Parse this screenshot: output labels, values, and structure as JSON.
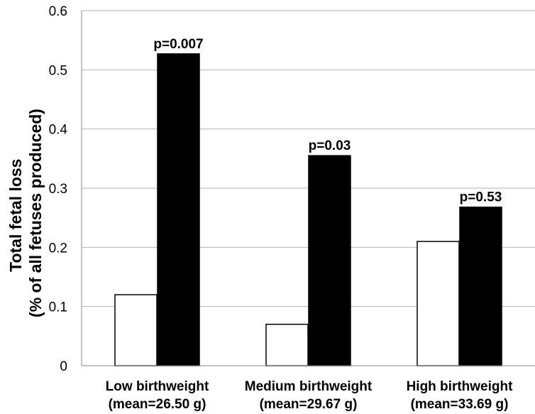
{
  "chart_data": {
    "type": "bar",
    "categories": [
      [
        "Low birthweight",
        "(mean=26.50 g)"
      ],
      [
        "Medium birthweight",
        "(mean=29.67 g)"
      ],
      [
        "High birthweight",
        "(mean=33.69 g)"
      ]
    ],
    "series": [
      {
        "values": [
          0.12,
          0.07,
          0.21
        ],
        "color": "#ffffff"
      },
      {
        "values": [
          0.527,
          0.355,
          0.268
        ],
        "color": "#000000"
      }
    ],
    "annotations": [
      "p=0.007",
      "p=0.03",
      "p=0.53"
    ],
    "ylabel": [
      "Total fetal loss",
      "(% of all fetuses produced)"
    ],
    "ylim": [
      0,
      0.6
    ],
    "yticks": [
      "0",
      "0.1",
      "0.2",
      "0.3",
      "0.4",
      "0.5",
      "0.6"
    ],
    "grid": true
  }
}
